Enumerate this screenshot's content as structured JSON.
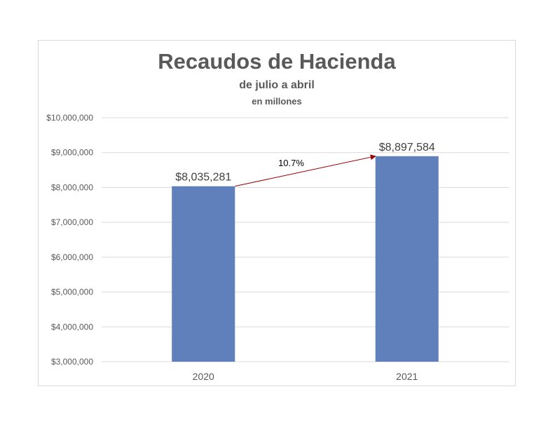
{
  "chart_data": {
    "type": "bar",
    "title": "Recaudos de Hacienda",
    "subtitle": "de julio a abril",
    "subtitle2": "en millones",
    "xlabel": "",
    "ylabel": "",
    "categories": [
      "2020",
      "2021"
    ],
    "values": [
      8035281,
      8897584
    ],
    "data_labels": [
      "$8,035,281",
      "$8,897,584"
    ],
    "ylim": [
      3000000,
      10000000
    ],
    "yticks": [
      3000000,
      4000000,
      5000000,
      6000000,
      7000000,
      8000000,
      9000000,
      10000000
    ],
    "ytick_labels": [
      "$3,000,000",
      "$4,000,000",
      "$5,000,000",
      "$6,000,000",
      "$7,000,000",
      "$8,000,000",
      "$9,000,000",
      "$10,000,000"
    ],
    "grid": true,
    "legend": "none",
    "annotation": {
      "text": "10.7%",
      "type": "arrow",
      "from": "2020",
      "to": "2021"
    },
    "colors": {
      "bar": "#6080bb",
      "arrow": "#9b0000",
      "grid": "#d9d9d9",
      "text": "#595959"
    }
  }
}
